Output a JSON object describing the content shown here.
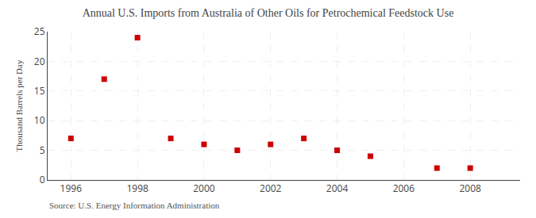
{
  "chart_data": {
    "type": "scatter",
    "title": "Annual U.S. Imports from Australia of Other Oils for Petrochemical Feedstock Use",
    "ylabel": "Thousand Barrels per Day",
    "annotations": [
      "Source: U.S. Energy Information Administration"
    ],
    "x": [
      1996,
      1997,
      1998,
      1999,
      2000,
      2001,
      2002,
      2003,
      2004,
      2005,
      2007,
      2008
    ],
    "values": [
      7,
      17,
      24,
      7,
      6,
      5,
      6,
      7,
      5,
      4,
      2,
      2
    ],
    "color": "#cc0000",
    "marker": "square",
    "xlim": [
      1995.3,
      2009.5
    ],
    "ylim": [
      0,
      25
    ],
    "xticks": [
      1996,
      1998,
      2000,
      2002,
      2004,
      2006,
      2008
    ],
    "yticks": [
      0,
      5,
      10,
      15,
      20,
      25
    ],
    "grid": true
  }
}
